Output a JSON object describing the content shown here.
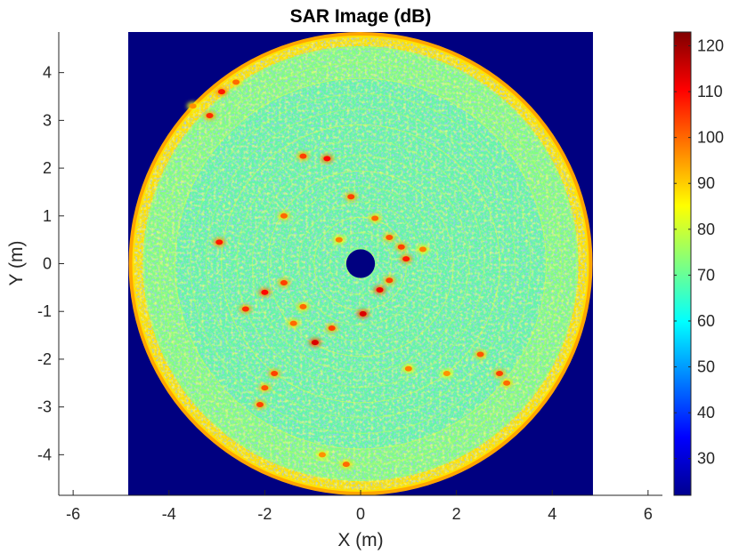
{
  "chart_data": {
    "type": "heatmap",
    "title": "SAR Image (dB)",
    "xlabel": "X (m)",
    "ylabel": "Y (m)",
    "xlim": [
      -6.3,
      6.3
    ],
    "ylim": [
      -4.85,
      4.85
    ],
    "x_ticks": [
      -6,
      -4,
      -2,
      0,
      2,
      4,
      6
    ],
    "x_tick_labels": [
      "-6",
      "-4",
      "-2",
      "0",
      "2",
      "4",
      "6"
    ],
    "y_ticks": [
      4,
      3,
      2,
      1,
      0,
      -1,
      -2,
      -3,
      -4
    ],
    "y_tick_labels": [
      "4",
      "3",
      "2",
      "1",
      "0",
      "-1",
      "-2",
      "-3",
      "-4"
    ],
    "image_extent_x": [
      -4.85,
      4.85
    ],
    "image_extent_y": [
      -4.85,
      4.85
    ],
    "disk_radius": 4.85,
    "hole_radius": 0.3,
    "colormap": "jet",
    "colorbar": {
      "range": [
        22,
        123
      ],
      "ticks": [
        30,
        40,
        50,
        60,
        70,
        80,
        90,
        100,
        110,
        120
      ],
      "tick_labels": [
        "30",
        "40",
        "50",
        "60",
        "70",
        "80",
        "90",
        "100",
        "110",
        "120"
      ],
      "placement": "right"
    },
    "background_value": 22,
    "typical_values": {
      "edge_ring": 88,
      "interior": 70,
      "bright_scatterers": 105,
      "dark_speckles": 45
    },
    "bright_spots": [
      {
        "x": -2.9,
        "y": 3.6,
        "value": 108
      },
      {
        "x": -3.15,
        "y": 3.1,
        "value": 106
      },
      {
        "x": -2.6,
        "y": 3.8,
        "value": 100
      },
      {
        "x": -2.95,
        "y": 0.45,
        "value": 108
      },
      {
        "x": -1.2,
        "y": 2.25,
        "value": 104
      },
      {
        "x": -0.7,
        "y": 2.2,
        "value": 110
      },
      {
        "x": -1.6,
        "y": 1.0,
        "value": 100
      },
      {
        "x": -0.2,
        "y": 1.4,
        "value": 104
      },
      {
        "x": 0.3,
        "y": 0.95,
        "value": 100
      },
      {
        "x": 0.6,
        "y": 0.55,
        "value": 102
      },
      {
        "x": 0.95,
        "y": 0.1,
        "value": 108
      },
      {
        "x": 1.3,
        "y": 0.3,
        "value": 98
      },
      {
        "x": 0.4,
        "y": -0.55,
        "value": 112
      },
      {
        "x": 0.05,
        "y": -1.05,
        "value": 114
      },
      {
        "x": 0.6,
        "y": -0.35,
        "value": 104
      },
      {
        "x": -0.6,
        "y": -1.35,
        "value": 104
      },
      {
        "x": -0.95,
        "y": -1.65,
        "value": 114
      },
      {
        "x": -1.2,
        "y": -0.9,
        "value": 100
      },
      {
        "x": -1.6,
        "y": -0.4,
        "value": 104
      },
      {
        "x": -2.0,
        "y": -0.6,
        "value": 110
      },
      {
        "x": -2.4,
        "y": -0.95,
        "value": 106
      },
      {
        "x": -1.4,
        "y": -1.25,
        "value": 100
      },
      {
        "x": -1.8,
        "y": -2.3,
        "value": 104
      },
      {
        "x": -2.0,
        "y": -2.6,
        "value": 102
      },
      {
        "x": -2.1,
        "y": -2.95,
        "value": 104
      },
      {
        "x": 1.0,
        "y": -2.2,
        "value": 98
      },
      {
        "x": 2.5,
        "y": -1.9,
        "value": 102
      },
      {
        "x": 2.9,
        "y": -2.3,
        "value": 104
      },
      {
        "x": 3.05,
        "y": -2.5,
        "value": 100
      },
      {
        "x": 1.8,
        "y": -2.3,
        "value": 96
      },
      {
        "x": -0.3,
        "y": -4.2,
        "value": 100
      },
      {
        "x": -0.8,
        "y": -4.0,
        "value": 96
      },
      {
        "x": -3.5,
        "y": 3.3,
        "value": 96
      },
      {
        "x": 0.85,
        "y": 0.35,
        "value": 104
      },
      {
        "x": -0.45,
        "y": 0.5,
        "value": 98
      }
    ]
  }
}
